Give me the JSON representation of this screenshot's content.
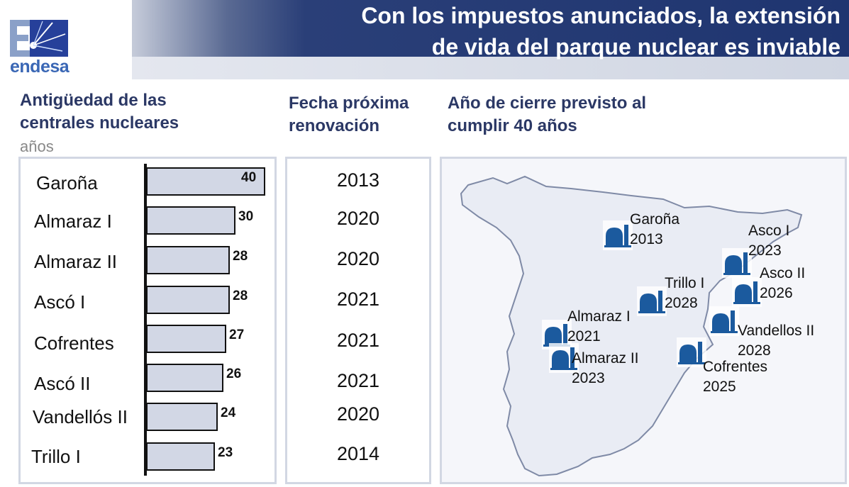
{
  "header": {
    "logo_text": "endesa",
    "title_line1": "Con los impuestos anunciados, la extensión",
    "title_line2": "de vida del parque nuclear es inviable",
    "brand_color": "#1f3570"
  },
  "sections": {
    "age_title_line1": "Antigüedad de las",
    "age_title_line2": "centrales nucleares",
    "age_unit": "años",
    "renewal_title_line1": "Fecha próxima",
    "renewal_title_line2": "renovación",
    "closure_title_line1": "Año de cierre previsto al",
    "closure_title_line2": "cumplir 40 años"
  },
  "chart_data": {
    "type": "bar",
    "orientation": "horizontal",
    "categories": [
      "Garoña",
      "Almaraz I",
      "Almaraz II",
      "Ascó I",
      "Cofrentes",
      "Ascó II",
      "Vandellós II",
      "Trillo I"
    ],
    "values": [
      40,
      30,
      28,
      28,
      27,
      26,
      24,
      23
    ],
    "value_labels": [
      "40",
      "30",
      "28",
      "28",
      "27",
      "26",
      "24",
      "23"
    ],
    "renewal_years": [
      "2013",
      "2020",
      "2020",
      "2021",
      "2021",
      "2021",
      "2020",
      "2014"
    ],
    "ylabel": "años",
    "xlim": [
      0,
      40
    ],
    "bar_color": "#d2d7e5"
  },
  "map_markers": [
    {
      "name": "Garoña",
      "year": "2013"
    },
    {
      "name": "Asco I",
      "year": "2023"
    },
    {
      "name": "Asco II",
      "year": "2026"
    },
    {
      "name": "Trillo I",
      "year": "2028"
    },
    {
      "name": "Almaraz I",
      "year": "2021"
    },
    {
      "name": "Almaraz II",
      "year": "2023"
    },
    {
      "name": "Vandellos II",
      "year": "2028"
    },
    {
      "name": "Cofrentes",
      "year": "2025"
    }
  ],
  "marker_icon": "reactor-icon",
  "marker_color": "#1b5a9e"
}
